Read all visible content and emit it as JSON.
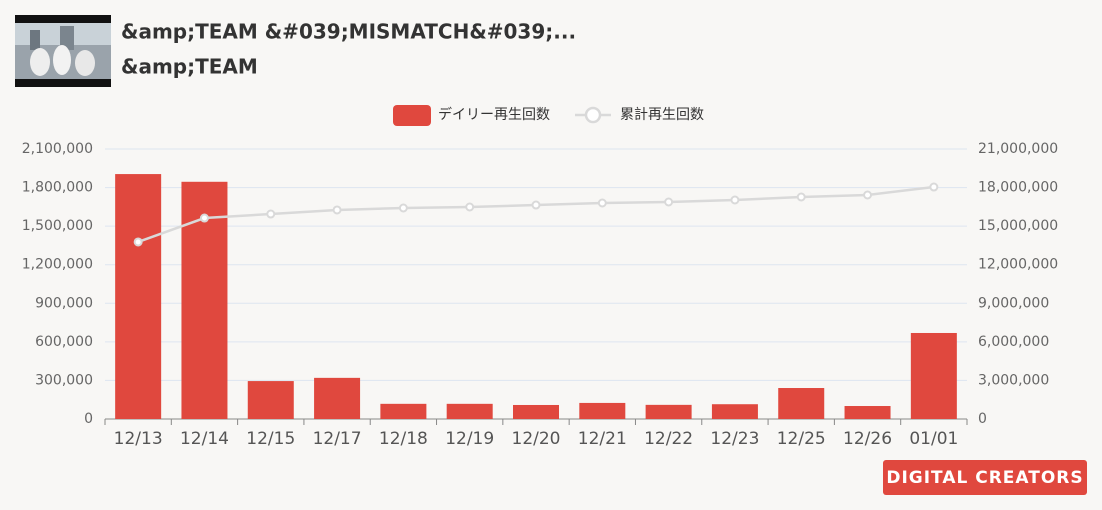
{
  "header": {
    "title": "&amp;TEAM &#039;MISMATCH&#039;...",
    "subtitle": "&amp;TEAM"
  },
  "logo": "DIGITAL CREATORS",
  "chart_data": {
    "type": "bar",
    "categories": [
      "12/13",
      "12/14",
      "12/15",
      "12/17",
      "12/18",
      "12/19",
      "12/20",
      "12/21",
      "12/22",
      "12/23",
      "12/25",
      "12/26",
      "01/01"
    ],
    "series": [
      {
        "name": "デイリー再生回数",
        "type": "bar",
        "color": "#e0483e",
        "values": [
          1905000,
          1845000,
          295000,
          320000,
          118000,
          118000,
          109000,
          125000,
          110000,
          115000,
          241000,
          101000,
          669000
        ]
      },
      {
        "name": "累計再生回数",
        "type": "line",
        "axis": "y2",
        "color": "#d9d9d9",
        "values": [
          13770000,
          15630000,
          15944000,
          16256000,
          16411000,
          16489000,
          16644000,
          16800000,
          16878000,
          17033000,
          17267000,
          17422000,
          18044000
        ]
      }
    ],
    "ylim": [
      0,
      2100000
    ],
    "yticks": [
      0,
      {
        "value": 300000,
        "label": "300,000"
      },
      {
        "value": 600000,
        "label": "600,000"
      },
      {
        "value": 900000,
        "label": "900,000"
      },
      {
        "value": 1200000,
        "label": "1,200,000"
      },
      {
        "value": 1500000,
        "label": "1,500,000"
      },
      {
        "value": 1800000,
        "label": "1,800,000"
      },
      {
        "value": 2100000,
        "label": "2,100,000"
      }
    ],
    "y2lim": [
      0,
      21000000
    ],
    "y2ticks": [
      0,
      {
        "value": 3000000,
        "label": "3,000,000"
      },
      {
        "value": 6000000,
        "label": "6,000,000"
      },
      {
        "value": 9000000,
        "label": "9,000,000"
      },
      {
        "value": 12000000,
        "label": "12,000,000"
      },
      {
        "value": 15000000,
        "label": "15,000,000"
      },
      {
        "value": 18000000,
        "label": "18,000,000"
      },
      {
        "value": 21000000,
        "label": "21,000,000"
      }
    ],
    "grid": true
  }
}
